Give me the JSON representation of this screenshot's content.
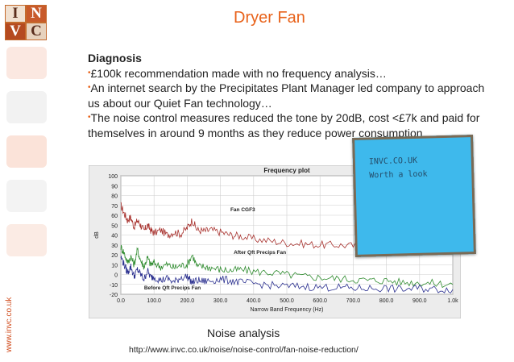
{
  "logo": {
    "letters": [
      "I",
      "N",
      "V",
      "C"
    ]
  },
  "side_url": "www.invc.co.uk",
  "slide_title": "Dryer Fan",
  "diagnosis": {
    "heading": "Diagnosis",
    "bullet_marker": "•",
    "lines": [
      "£100k recommendation made with no frequency analysis…",
      "An internet search by the Precipitates Plant Manager led company to approach us about our Quiet Fan technology…",
      "The noise control measures reduced the tone by 20dB, cost <£7k and paid for themselves in around 9 months as they reduce power consumption…"
    ]
  },
  "sticky_note": {
    "line1": "INVC.CO.UK",
    "line2": "Worth a look"
  },
  "caption": "Noise analysis",
  "link_url": "http://www.invc.co.uk/noise/noise-control/fan-noise-reduction/",
  "chart_data": {
    "type": "line",
    "title": "Frequency plot",
    "xlabel": "Narrow Band Frequency (Hz)",
    "ylabel": "dB",
    "xlim": [
      0,
      1000
    ],
    "ylim": [
      -20,
      100
    ],
    "xticks": [
      "0.0",
      "100.0",
      "200.0",
      "300.0",
      "400.0",
      "500.0",
      "600.0",
      "700.0",
      "800.0",
      "900.0",
      "1.0k"
    ],
    "yticks": [
      "-20",
      "-10",
      "0",
      "10",
      "20",
      "30",
      "40",
      "50",
      "60",
      "70",
      "80",
      "90",
      "100"
    ],
    "grid": true,
    "colors": {
      "red": "#a8322e",
      "green": "#2e8b2e",
      "blue": "#2a2f8f"
    },
    "annotations": [
      {
        "text": "Fan CGF3",
        "x": 330,
        "y": 64
      },
      {
        "text": "After Qft Precips Fan",
        "x": 340,
        "y": 21
      },
      {
        "text": "Before Qft Precips Fan",
        "x": 70,
        "y": -15
      }
    ],
    "series": [
      {
        "name": "Fan CGF3",
        "color": "red",
        "x": [
          0,
          10,
          20,
          30,
          40,
          50,
          60,
          70,
          80,
          90,
          100,
          120,
          140,
          160,
          180,
          200,
          215,
          230,
          250,
          270,
          300,
          330,
          360,
          400,
          450,
          500,
          550,
          600,
          650,
          700,
          750,
          800,
          850,
          900,
          950,
          1000
        ],
        "y": [
          70,
          62,
          55,
          58,
          48,
          55,
          50,
          44,
          50,
          45,
          42,
          45,
          40,
          43,
          41,
          47,
          55,
          45,
          44,
          45,
          43,
          40,
          39,
          36,
          34,
          32,
          31,
          30,
          30,
          29,
          29,
          28,
          28,
          29,
          28,
          28
        ]
      },
      {
        "name": "After Qft Precips Fan",
        "color": "green",
        "x": [
          0,
          10,
          20,
          30,
          40,
          50,
          60,
          70,
          80,
          90,
          100,
          120,
          140,
          160,
          180,
          200,
          215,
          230,
          250,
          270,
          300,
          330,
          360,
          400,
          450,
          500,
          550,
          600,
          650,
          700,
          750,
          800,
          850,
          900,
          950,
          1000
        ],
        "y": [
          28,
          22,
          12,
          18,
          10,
          25,
          14,
          8,
          17,
          10,
          12,
          8,
          10,
          7,
          9,
          10,
          20,
          8,
          8,
          7,
          5,
          4,
          5,
          3,
          2,
          0,
          -2,
          -3,
          -4,
          -5,
          -6,
          -6,
          -8,
          -8,
          -9,
          -10
        ]
      },
      {
        "name": "Before Qft Precips Fan",
        "color": "blue",
        "x": [
          0,
          10,
          20,
          30,
          40,
          50,
          60,
          70,
          80,
          90,
          100,
          120,
          140,
          160,
          180,
          200,
          215,
          230,
          250,
          270,
          300,
          330,
          360,
          400,
          450,
          500,
          550,
          600,
          650,
          700,
          750,
          800,
          850,
          900,
          950,
          1000
        ],
        "y": [
          18,
          10,
          2,
          8,
          -2,
          5,
          0,
          -5,
          4,
          -3,
          -2,
          -6,
          -4,
          -8,
          -3,
          -2,
          -8,
          -6,
          -7,
          -6,
          -5,
          -6,
          -8,
          -9,
          -11,
          -12,
          -12,
          -13,
          -13,
          -14,
          -14,
          -14,
          -15,
          -14,
          -15,
          -15
        ]
      }
    ]
  }
}
